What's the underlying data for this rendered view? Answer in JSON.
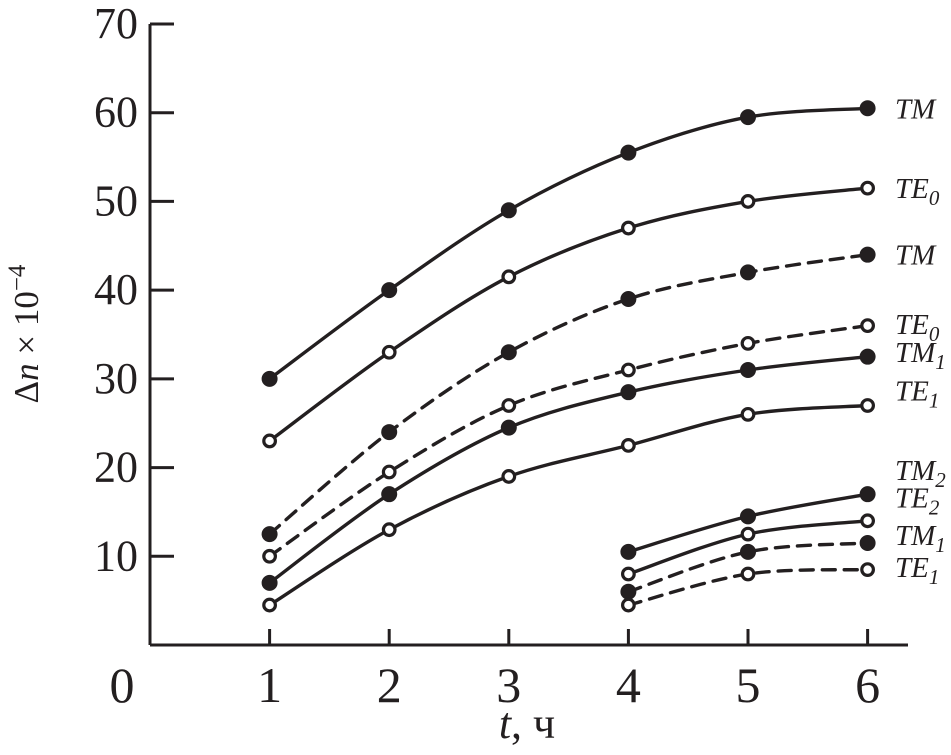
{
  "chart_data": {
    "type": "line",
    "title": "",
    "xlabel": "t, ч",
    "xlabel_parts": {
      "variable": "t",
      "rest": ", ч"
    },
    "ylabel": "Δn × 10⁻⁴",
    "ylabel_parts": {
      "prefix": "Δ",
      "variable": "n",
      "mid": " × 10",
      "superscript": "−4"
    },
    "xlim": [
      0,
      6.34
    ],
    "ylim": [
      0,
      70
    ],
    "x_tick_labels": [
      0,
      1,
      2,
      3,
      4,
      5,
      6
    ],
    "x_tick_marks": [
      1,
      2,
      3,
      4,
      5,
      6
    ],
    "y_ticks": [
      10,
      20,
      30,
      40,
      50,
      60,
      70
    ],
    "grid": false,
    "legend_position": "labels-right-of-curve-ends",
    "ink_color": "#231f20",
    "background_color": "#ffffff",
    "series": [
      {
        "name": "TM solid",
        "label": "TM",
        "label_sub": "",
        "line": "solid",
        "marker": "filled",
        "x": [
          1,
          2,
          3,
          4,
          5,
          6
        ],
        "y": [
          30,
          40,
          49,
          55.5,
          59.5,
          60.5
        ],
        "label_at": 60.5
      },
      {
        "name": "TE0 solid",
        "label": "TE",
        "label_sub": "0",
        "line": "solid",
        "marker": "open",
        "x": [
          1,
          2,
          3,
          4,
          5,
          6
        ],
        "y": [
          23,
          33,
          41.5,
          47,
          50,
          51.5
        ],
        "label_at": 51.5
      },
      {
        "name": "TM dashed",
        "label": "TM",
        "label_sub": "",
        "line": "dashed",
        "marker": "filled",
        "x": [
          1,
          2,
          3,
          4,
          5,
          6
        ],
        "y": [
          12.5,
          24,
          33,
          39,
          42,
          44
        ],
        "label_at": 44
      },
      {
        "name": "TE0 dashed",
        "label": "TE",
        "label_sub": "0",
        "line": "dashed",
        "marker": "open",
        "x": [
          1,
          2,
          3,
          4,
          5,
          6
        ],
        "y": [
          10,
          19.5,
          27,
          31,
          34,
          36
        ],
        "label_at": 36.2
      },
      {
        "name": "TM1 solid",
        "label": "TM",
        "label_sub": "1",
        "line": "solid",
        "marker": "filled",
        "x": [
          1,
          2,
          3,
          4,
          5,
          6
        ],
        "y": [
          7,
          17,
          24.5,
          28.5,
          31,
          32.5
        ],
        "label_at": 33
      },
      {
        "name": "TE1 solid",
        "label": "TE",
        "label_sub": "1",
        "line": "solid",
        "marker": "open",
        "x": [
          1,
          2,
          3,
          4,
          5,
          6
        ],
        "y": [
          4.5,
          13,
          19,
          22.5,
          26,
          27
        ],
        "label_at": 28.7
      },
      {
        "name": "TM2 solid",
        "label": "TM",
        "label_sub": "2",
        "line": "solid",
        "marker": "filled",
        "x": [
          4,
          5,
          6
        ],
        "y": [
          10.5,
          14.5,
          17
        ],
        "label_at": 19.7
      },
      {
        "name": "TE2 solid",
        "label": "TE",
        "label_sub": "2",
        "line": "solid",
        "marker": "open",
        "x": [
          4,
          5,
          6
        ],
        "y": [
          8,
          12.5,
          14
        ],
        "label_at": 16.6
      },
      {
        "name": "TM1 dashed",
        "label": "TM",
        "label_sub": "1",
        "line": "dashed",
        "marker": "filled",
        "x": [
          4,
          5,
          6
        ],
        "y": [
          6,
          10.5,
          11.5
        ],
        "label_at": 12.4
      },
      {
        "name": "TE1 dashed",
        "label": "TE",
        "label_sub": "1",
        "line": "dashed",
        "marker": "open",
        "x": [
          4,
          5,
          6
        ],
        "y": [
          4.5,
          8,
          8.5
        ],
        "label_at": 8.8
      }
    ]
  }
}
